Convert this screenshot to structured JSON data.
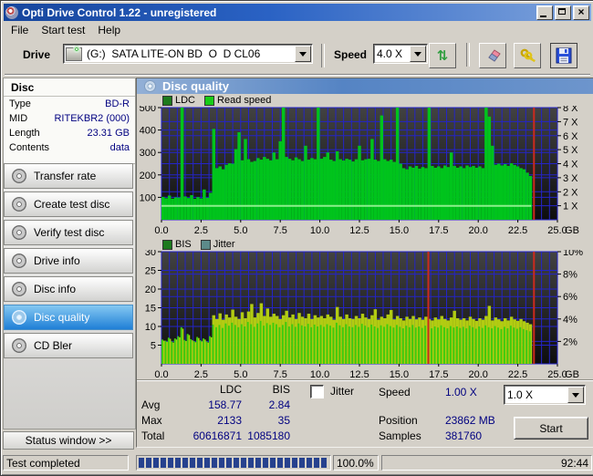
{
  "window": {
    "title": "Opti Drive Control 1.22 - unregistered"
  },
  "menu": {
    "items": [
      {
        "label": "File"
      },
      {
        "label": "Start test"
      },
      {
        "label": "Help"
      }
    ]
  },
  "toolbar": {
    "drive_label": "Drive",
    "drive_value": "(G:)  SATA LITE-ON BD  O  D CL06",
    "speed_label": "Speed",
    "speed_value": "4.0 X",
    "icons": [
      "refresh-icon",
      "eraser-icon",
      "register-keys-icon",
      "save-icon"
    ]
  },
  "sidebar": {
    "panel_title": "Disc",
    "info": [
      {
        "label": "Type",
        "value": "BD-R"
      },
      {
        "label": "MID",
        "value": "RITEKBR2 (000)"
      },
      {
        "label": "Length",
        "value": "23.31 GB"
      },
      {
        "label": "Contents",
        "value": "data"
      }
    ],
    "buttons": [
      {
        "label": "Transfer rate",
        "selected": false
      },
      {
        "label": "Create test disc",
        "selected": false
      },
      {
        "label": "Verify test disc",
        "selected": false
      },
      {
        "label": "Drive info",
        "selected": false
      },
      {
        "label": "Disc info",
        "selected": false
      },
      {
        "label": "Disc quality",
        "selected": true
      },
      {
        "label": "CD Bler",
        "selected": false
      }
    ],
    "status_window_label": "Status window >>",
    "selected_color": "#2287dc"
  },
  "main": {
    "header": "Disc quality",
    "stats": {
      "col_ldc": "LDC",
      "col_bis": "BIS",
      "rows": [
        {
          "label": "Avg",
          "ldc": "158.77",
          "bis": "2.84"
        },
        {
          "label": "Max",
          "ldc": "2133",
          "bis": "35"
        },
        {
          "label": "Total",
          "ldc": "60616871",
          "bis": "1085180"
        }
      ],
      "jitter_label": "Jitter",
      "jitter_checked": false,
      "speed_label": "Speed",
      "speed_value": "1.00 X",
      "position_label": "Position",
      "position_value": "23862 MB",
      "samples_label": "Samples",
      "samples_value": "381760",
      "speed_select_value": "1.0 X",
      "start_label": "Start"
    }
  },
  "statusbar": {
    "message": "Test completed",
    "percent": "100.0%",
    "time": "92:44"
  },
  "chart_data": [
    {
      "type": "area",
      "title": "LDC / Read speed",
      "legend": [
        {
          "label": "LDC",
          "color": "#1d7a1d"
        },
        {
          "label": "Read speed",
          "color": "#18cc18"
        }
      ],
      "xlim": [
        0,
        25
      ],
      "x_grid_step": 0.5,
      "x_unit": "GB",
      "x_ticks": [
        0.0,
        2.5,
        5.0,
        7.5,
        10.0,
        12.5,
        15.0,
        17.5,
        20.0,
        22.5,
        25.0
      ],
      "ylim_left": [
        0,
        500
      ],
      "left_ticks": [
        100,
        200,
        300,
        400,
        500
      ],
      "right_ticks": [
        {
          "label": "1 X",
          "value": 62.5
        },
        {
          "label": "2 X",
          "value": 125
        },
        {
          "label": "3 X",
          "value": 187.5
        },
        {
          "label": "4 X",
          "value": 250
        },
        {
          "label": "5 X",
          "value": 312.5
        },
        {
          "label": "6 X",
          "value": 375
        },
        {
          "label": "7 X",
          "value": 437.5
        },
        {
          "label": "8 X",
          "value": 500
        }
      ],
      "grid_rows": [
        62.5,
        100,
        125,
        187.5,
        200,
        250,
        300,
        312.5,
        375,
        400,
        437.5,
        500
      ],
      "bg": [
        "#424242",
        "#0d0d0d"
      ],
      "grid_color": "#2424c8",
      "series": [
        {
          "name": "LDC",
          "color": "#00c41c",
          "x_start": 0,
          "x_step": 0.2,
          "width_frac": 1,
          "values": [
            102,
            96,
            108,
            94,
            100,
            99,
            500,
            104,
            97,
            110,
            93,
            101,
            95,
            135,
            98,
            120,
            405,
            230,
            238,
            225,
            245,
            252,
            250,
            315,
            390,
            265,
            360,
            270,
            258,
            262,
            275,
            268,
            280,
            272,
            265,
            300,
            270,
            350,
            500,
            280,
            272,
            265,
            278,
            270,
            262,
            330,
            268,
            275,
            270,
            505,
            272,
            280,
            300,
            268,
            262,
            305,
            270,
            264,
            272,
            268,
            260,
            270,
            330,
            265,
            270,
            272,
            360,
            268,
            262,
            465,
            270,
            262,
            268,
            258,
            505,
            250,
            230,
            225,
            238,
            232,
            240,
            228,
            235,
            230,
            500,
            240,
            232,
            238,
            230,
            242,
            235,
            300,
            240,
            232,
            238,
            230,
            242,
            235,
            240,
            232,
            238,
            230,
            500,
            460,
            330,
            245,
            250,
            242,
            248,
            240,
            252,
            244,
            238,
            230,
            225,
            210,
            195
          ]
        }
      ],
      "baseline": {
        "name": "Read speed",
        "speed_x": 1.0,
        "value_left": 62,
        "x_from": 0,
        "x_to": 23.35,
        "color": "#8cf08c"
      },
      "markers": [
        {
          "x": 23.52,
          "color": "#cc2a1e"
        }
      ]
    },
    {
      "type": "area",
      "title": "BIS / Jitter",
      "legend": [
        {
          "label": "BIS",
          "color": "#1d7a1d"
        },
        {
          "label": "Jitter",
          "color": "#5c8a8a"
        }
      ],
      "xlim": [
        0,
        25
      ],
      "x_grid_step": 0.5,
      "x_unit": "GB",
      "x_ticks": [
        0.0,
        2.5,
        5.0,
        7.5,
        10.0,
        12.5,
        15.0,
        17.5,
        20.0,
        22.5,
        25.0
      ],
      "ylim_left": [
        0,
        30
      ],
      "left_ticks": [
        5,
        10,
        15,
        20,
        25,
        30
      ],
      "right_ticks": [
        {
          "label": "2%",
          "value": 6
        },
        {
          "label": "4%",
          "value": 12
        },
        {
          "label": "6%",
          "value": 18
        },
        {
          "label": "8%",
          "value": 24
        },
        {
          "label": "10%",
          "value": 30
        }
      ],
      "grid_rows": [
        5,
        6,
        10,
        12,
        15,
        18,
        20,
        24,
        25,
        30
      ],
      "bg": [
        "#424242",
        "#0d0d0d"
      ],
      "grid_color": "#2424c8",
      "series": [
        {
          "name": "BIS peaks",
          "color": "#b2cc12",
          "x_start": 0,
          "x_step": 0.2,
          "width_frac": 1,
          "values": [
            6.2,
            5.9,
            6.7,
            5.7,
            6.5,
            7.1,
            9.4,
            6.1,
            7.7,
            6.3,
            5.8,
            6.9,
            6,
            6.5,
            5.7,
            7.1,
            13,
            12,
            13.5,
            11.8,
            13.2,
            12.4,
            14.5,
            12.6,
            12,
            13.8,
            12.2,
            14,
            16,
            12.4,
            13.6,
            16.2,
            12.8,
            14.8,
            12.6,
            13.4,
            12.8,
            12,
            13,
            14.2,
            12.4,
            13.2,
            12,
            13.6,
            12.6,
            12.2,
            13.4,
            12,
            13,
            12.4,
            12.8,
            12.2,
            13.2,
            12.6,
            11.8,
            15.2,
            12.6,
            12,
            13.2,
            12.2,
            12,
            12.8,
            12.2,
            13.4,
            12.4,
            12,
            13,
            14.6,
            11.8,
            12.6,
            12.2,
            13.2,
            14.4,
            11.9,
            12.8,
            12.2,
            11.6,
            12.6,
            12,
            12.8,
            11.9,
            12.4,
            11.8,
            12.6,
            12,
            11.6,
            12.4,
            11.9,
            12.8,
            12,
            11.6,
            12.4,
            14.2,
            12.2,
            11.8,
            12.2,
            11.6,
            12.6,
            12,
            11.5,
            12.2,
            11.8,
            12.8,
            15.5,
            11.6,
            12.4,
            11.9,
            11.4,
            12.2,
            11.6,
            12.6,
            11.9,
            11.5,
            12,
            11.4,
            11,
            10.6
          ]
        },
        {
          "name": "BIS",
          "color": "#3ecc0e",
          "x_start": 0,
          "x_step": 0.2,
          "width_frac": 0.55,
          "values": [
            6.5,
            6.2,
            7,
            6,
            6.8,
            7.4,
            9.8,
            6.4,
            8,
            6.6,
            6.1,
            7.2,
            6.3,
            6.8,
            6,
            7.4,
            10.5,
            9.8,
            10.4,
            9.6,
            10.8,
            10.2,
            11,
            10.4,
            9.8,
            10.6,
            10,
            11.2,
            10.6,
            9.9,
            10.8,
            11.5,
            10.2,
            10.9,
            10.4,
            11,
            10.6,
            9.8,
            10.4,
            11.2,
            10,
            10.6,
            9.9,
            10.8,
            10.3,
            10,
            10.7,
            9.8,
            10.5,
            10,
            10.4,
            9.9,
            10.6,
            10.2,
            9.7,
            11,
            10.3,
            9.8,
            10.6,
            10,
            9.8,
            10.4,
            9.9,
            10.7,
            10.2,
            9.8,
            10.5,
            10,
            9.6,
            10.3,
            9.9,
            10.6,
            10.1,
            9.7,
            10.4,
            9.9,
            9.5,
            10.2,
            9.8,
            10.4,
            9.7,
            10,
            9.6,
            10.2,
            9.8,
            9.5,
            10,
            9.7,
            10.3,
            9.8,
            9.5,
            10.1,
            9.7,
            10,
            9.6,
            9.9,
            9.5,
            10.2,
            9.8,
            9.4,
            10,
            9.6,
            10.3,
            9.8,
            9.5,
            10.1,
            9.7,
            9.3,
            9.9,
            9.5,
            10.2,
            9.7,
            9.4,
            9.8,
            9.3,
            9,
            8.7
          ]
        }
      ],
      "markers": [
        {
          "x": 16.85,
          "color": "#cc2a1e"
        },
        {
          "x": 23.52,
          "color": "#cc2a1e"
        }
      ]
    }
  ]
}
